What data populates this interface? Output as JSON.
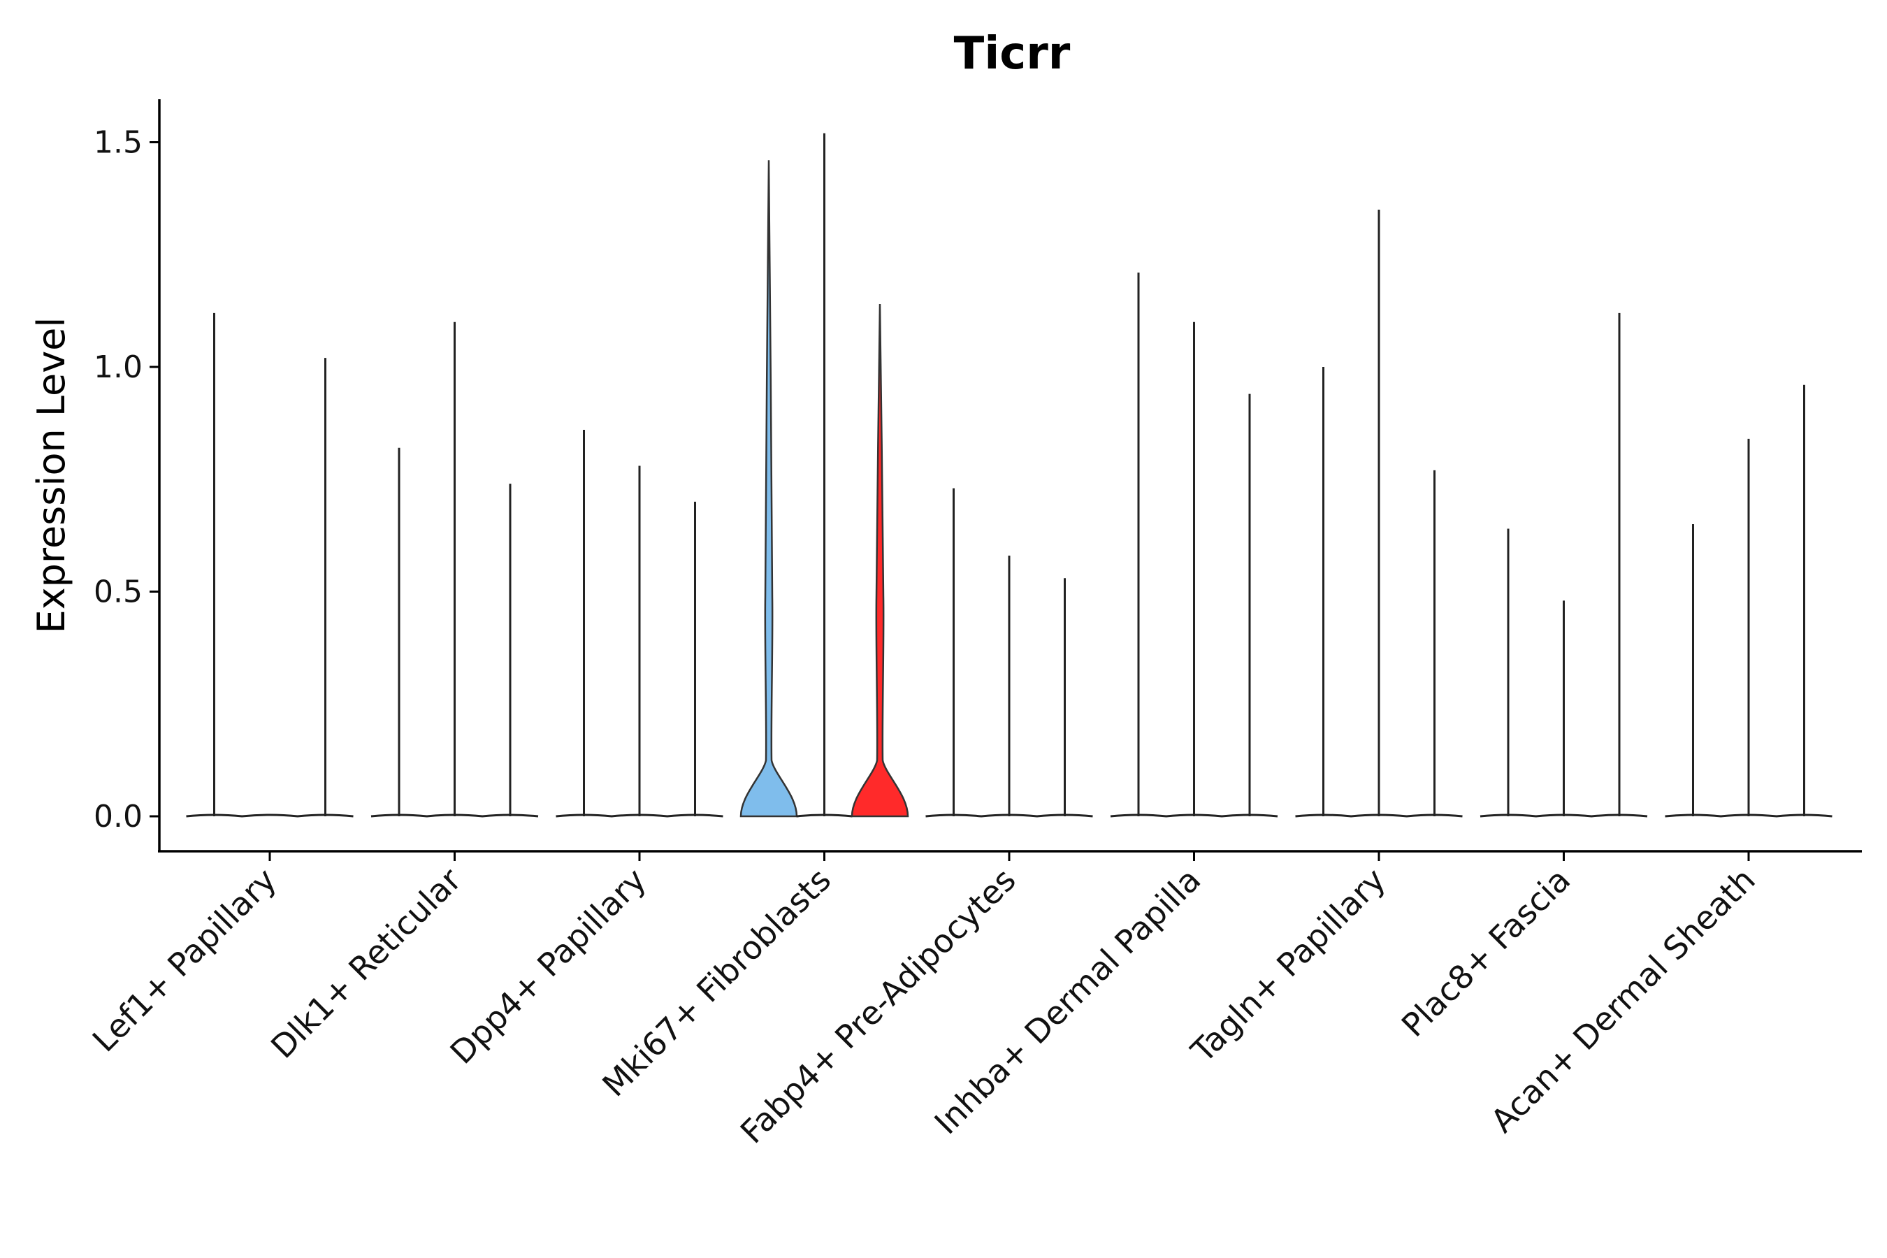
{
  "chart_data": {
    "type": "violin",
    "title": "Ticrr",
    "xlabel": "",
    "ylabel": "Expression Level",
    "ylim": [
      -0.075,
      1.6
    ],
    "yticks": [
      0.0,
      0.5,
      1.0,
      1.5
    ],
    "ytick_labels": [
      "0.0",
      "0.5",
      "1.0",
      "1.5"
    ],
    "grid": false,
    "legend": "none",
    "categories": [
      "Lef1+ Papillary",
      "Dlk1+ Reticular",
      "Dpp4+ Papillary",
      "Mki67+ Fibroblasts",
      "Fabp4+ Pre-Adipocytes",
      "Inhba+ Dermal Papilla",
      "Tagln+ Papillary",
      "Plac8+ Fascia",
      "Acan+ Dermal Sheath"
    ],
    "groups": [
      {
        "category": "Lef1+ Papillary",
        "split_max": [
          1.12,
          0.0,
          1.02
        ],
        "fill": null
      },
      {
        "category": "Dlk1+ Reticular",
        "split_max": [
          0.82,
          1.1,
          0.74
        ],
        "fill": null
      },
      {
        "category": "Dpp4+ Papillary",
        "split_max": [
          0.86,
          0.78,
          0.7
        ],
        "fill": null
      },
      {
        "category": "Mki67+ Fibroblasts",
        "split_max": [
          1.46,
          1.52,
          1.14
        ],
        "fill": [
          "#7fbdec",
          null,
          "#ff2a2a"
        ]
      },
      {
        "category": "Fabp4+ Pre-Adipocytes",
        "split_max": [
          0.73,
          0.58,
          0.53
        ],
        "fill": null
      },
      {
        "category": "Inhba+ Dermal Papilla",
        "split_max": [
          1.21,
          1.1,
          0.94
        ],
        "fill": null
      },
      {
        "category": "Tagln+ Papillary",
        "split_max": [
          1.0,
          1.35,
          0.77
        ],
        "fill": null
      },
      {
        "category": "Plac8+ Fascia",
        "split_max": [
          0.64,
          0.48,
          1.12
        ],
        "fill": null
      },
      {
        "category": "Acan+ Dermal Sheath",
        "split_max": [
          0.65,
          0.84,
          0.96
        ],
        "fill": null
      }
    ],
    "colors": {
      "blue_violin": "#7fbdec",
      "red_violin": "#ff2a2a",
      "line": "#222222"
    }
  }
}
